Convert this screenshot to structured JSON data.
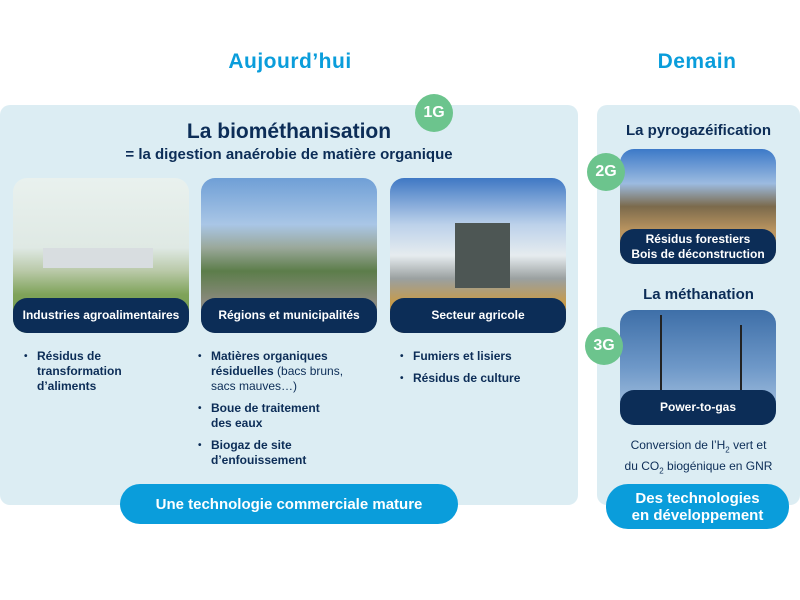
{
  "headings": {
    "today": "Aujourd’hui",
    "tomorrow": "Demain"
  },
  "colors": {
    "accent": "#0a9ddb",
    "navy": "#0c2d57",
    "panel": "#dcedf3",
    "badge": "#6cc48d"
  },
  "left": {
    "badge": "1G",
    "title": "La biométhanisation",
    "subtitle": "= la digestion anaérobie de matière organique",
    "sectors": [
      {
        "label": "Industries agroalimentaires",
        "items": [
          {
            "bold": "Résidus de transformation d’aliments",
            "normal": ""
          }
        ]
      },
      {
        "label": "Régions et municipalités",
        "items": [
          {
            "bold": "Matières organiques résiduelles",
            "normal": " (bacs bruns, sacs mauves…)"
          },
          {
            "bold": "Boue de traitement des eaux",
            "normal": ""
          },
          {
            "bold": "Biogaz de site d’enfouissement",
            "normal": ""
          }
        ]
      },
      {
        "label": "Secteur agricole",
        "items": [
          {
            "bold": "Fumiers et lisiers",
            "normal": ""
          },
          {
            "bold": "Résidus de culture",
            "normal": ""
          }
        ]
      }
    ],
    "footer": "Une technologie commerciale mature"
  },
  "right": {
    "pyro": {
      "badge": "2G",
      "title": "La pyrogazéification",
      "label_line1": "Résidus forestiers",
      "label_line2": "Bois de déconstruction"
    },
    "metha": {
      "badge": "3G",
      "title": "La méthanation",
      "label": "Power-to-gas",
      "desc1a": "Conversion de l’H",
      "desc1sub": "2",
      "desc1b": " vert et",
      "desc2a": "du CO",
      "desc2sub": "2",
      "desc2b": " biogénique en GNR"
    },
    "footer_line1": "Des technologies",
    "footer_line2": "en développement"
  }
}
